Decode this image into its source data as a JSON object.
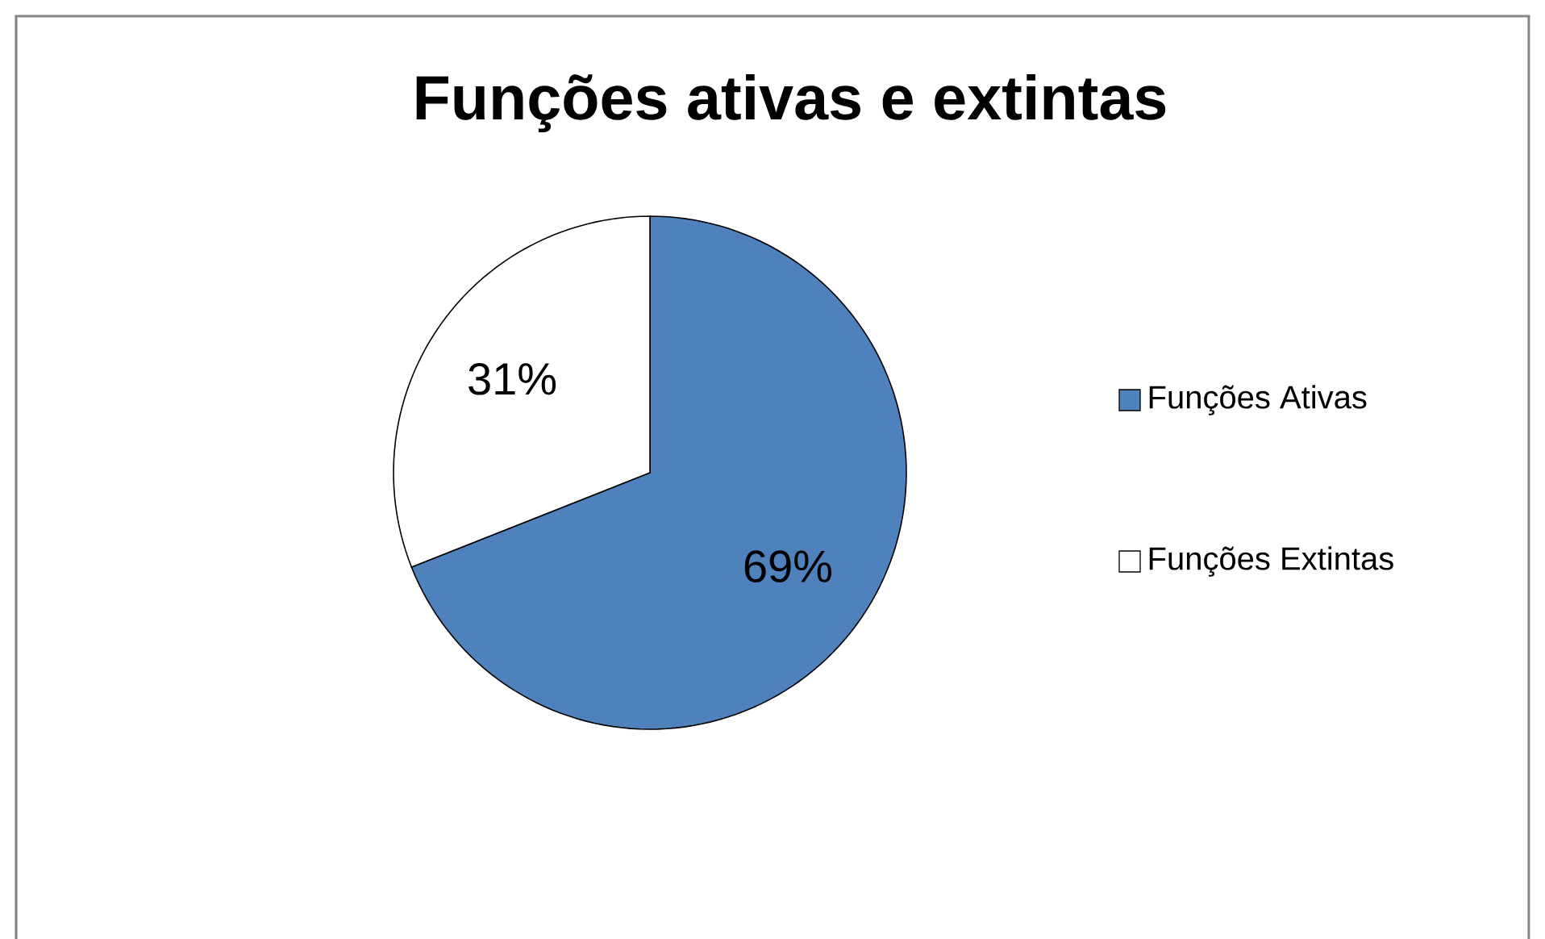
{
  "chart_data": {
    "type": "pie",
    "title": "Funções ativas e extintas",
    "categories": [
      "Funções Ativas",
      "Funções Extintas"
    ],
    "values": [
      69,
      31
    ],
    "colors": [
      "#4f81bd",
      "#ffffff"
    ],
    "value_labels": [
      "69%",
      "31%"
    ],
    "legend": "right"
  }
}
